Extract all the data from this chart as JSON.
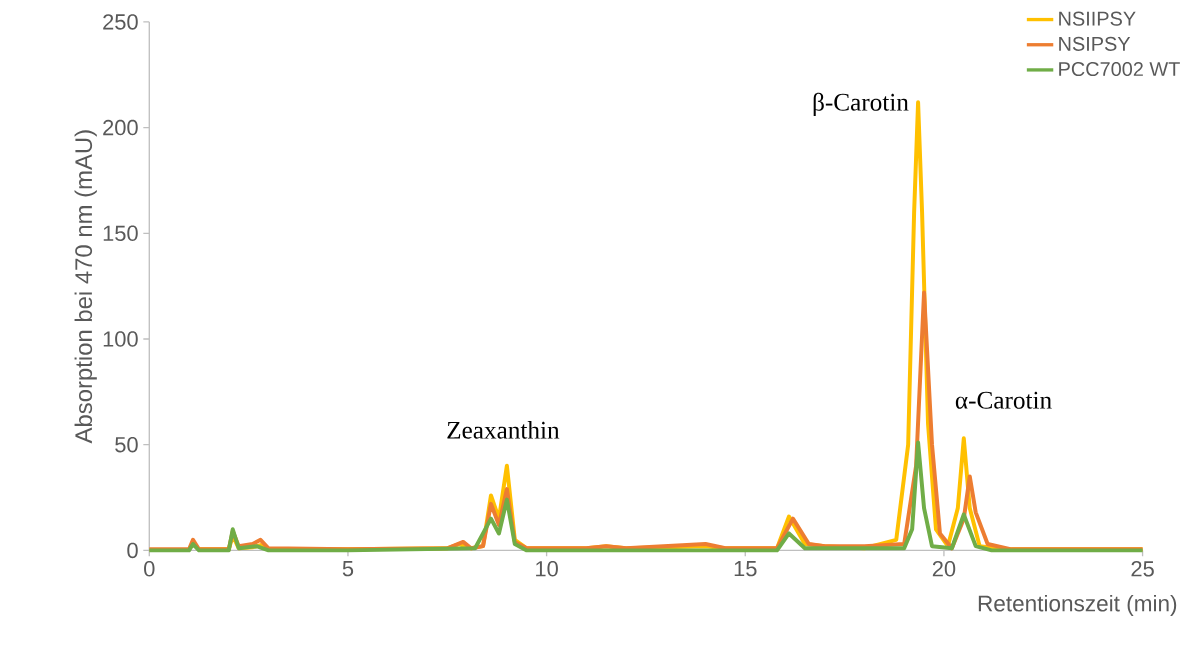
{
  "chart_data": {
    "type": "line",
    "xlabel": "Retentionszeit (min)",
    "ylabel": "Absorption bei 470 nm (mAU)",
    "xlim": [
      0,
      25
    ],
    "ylim": [
      0,
      250
    ],
    "xticks": [
      0,
      5,
      10,
      15,
      20,
      25
    ],
    "yticks": [
      0,
      50,
      100,
      150,
      200,
      250
    ],
    "legend": "top right",
    "grid": false,
    "annotations": [
      "Zeaxanthin",
      "β-Carotin",
      "α-Carotin"
    ],
    "series": [
      {
        "name": "NSIIPSY",
        "color": "#ffc000",
        "x": [
          1.25,
          2.0,
          2.1,
          2.25,
          2.6,
          2.8,
          3.0,
          5,
          7.5,
          7.8,
          8.1,
          8.4,
          8.6,
          8.8,
          9.0,
          9.2,
          9.5,
          11,
          11.5,
          12,
          14,
          14.5,
          15.8,
          16.1,
          16.5,
          17,
          18,
          18.8,
          19.1,
          19.25,
          19.35,
          19.45,
          19.6,
          19.8,
          20.1,
          20.35,
          20.5,
          20.65,
          20.9,
          21.5,
          25
        ],
        "values": [
          0.5,
          0.5,
          7,
          1,
          1.5,
          2.5,
          0.5,
          0.5,
          1,
          3,
          1,
          2,
          26,
          15,
          40,
          5,
          1,
          1,
          2,
          1,
          2,
          1,
          1,
          16,
          3,
          2,
          1,
          5,
          50,
          160,
          212,
          160,
          60,
          10,
          2,
          20,
          53,
          20,
          2,
          0.5,
          0.5
        ]
      },
      {
        "name": "NSIPSY",
        "color": "#ed7d31",
        "x": [
          0,
          1.0,
          1.1,
          1.25,
          2.0,
          2.1,
          2.25,
          2.6,
          2.8,
          3.0,
          5,
          7.5,
          7.9,
          8.1,
          8.4,
          8.6,
          8.8,
          9.0,
          9.2,
          9.5,
          11,
          11.5,
          12,
          14,
          14.5,
          15.8,
          16.2,
          16.6,
          17,
          18,
          19.0,
          19.3,
          19.5,
          19.7,
          19.9,
          20.2,
          20.5,
          20.65,
          20.8,
          21.1,
          21.7,
          25
        ],
        "values": [
          0.5,
          0.5,
          5,
          0.5,
          0.5,
          9,
          2,
          3,
          5,
          1,
          0.5,
          1,
          4,
          1,
          2,
          22,
          12,
          29,
          4,
          1,
          1,
          2,
          1,
          3,
          1,
          1,
          15,
          3,
          2,
          2,
          3,
          40,
          122,
          50,
          8,
          1,
          15,
          35,
          18,
          3,
          0.5,
          0.5
        ]
      },
      {
        "name": "PCC7002 WT",
        "color": "#70ad47",
        "x": [
          0,
          1.0,
          1.1,
          1.25,
          2.0,
          2.1,
          2.25,
          2.7,
          3.0,
          5,
          8.2,
          8.6,
          8.8,
          9.0,
          9.2,
          9.5,
          15.8,
          16.1,
          16.5,
          19.0,
          19.2,
          19.35,
          19.5,
          19.7,
          20.2,
          20.5,
          20.8,
          21.2,
          25
        ],
        "values": [
          0,
          0,
          3,
          0,
          0,
          10,
          1,
          2,
          0,
          0,
          1,
          15,
          8,
          24,
          3,
          0,
          0,
          8,
          1,
          1,
          10,
          51,
          20,
          2,
          1,
          17,
          2,
          0,
          0
        ]
      }
    ]
  }
}
